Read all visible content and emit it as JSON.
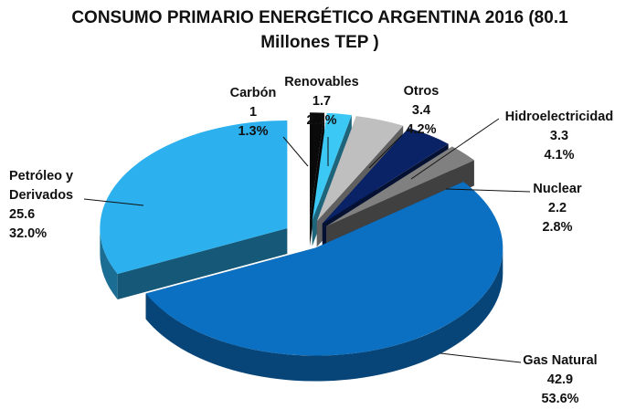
{
  "chart_data": {
    "type": "pie",
    "title": "CONSUMO PRIMARIO ENERGÉTICO ARGENTINA 2016 (80.1 Millones TEP )",
    "categories": [
      "Carbón",
      "Renovables",
      "Otros",
      "Hidroelectricidad",
      "Nuclear",
      "Gas Natural",
      "Petróleo y Derivados"
    ],
    "values": [
      1.0,
      1.7,
      3.4,
      3.3,
      2.2,
      42.9,
      25.6
    ],
    "percent_labels": [
      "1.3%",
      "2.1%",
      "4.2%",
      "4.1%",
      "2.8%",
      "53.6%",
      "32.0%"
    ],
    "colors": [
      "#0a0a0a",
      "#3cc8f5",
      "#bfbfbf",
      "#0a2266",
      "#808080",
      "#0b70c1",
      "#2cb0ee"
    ]
  }
}
